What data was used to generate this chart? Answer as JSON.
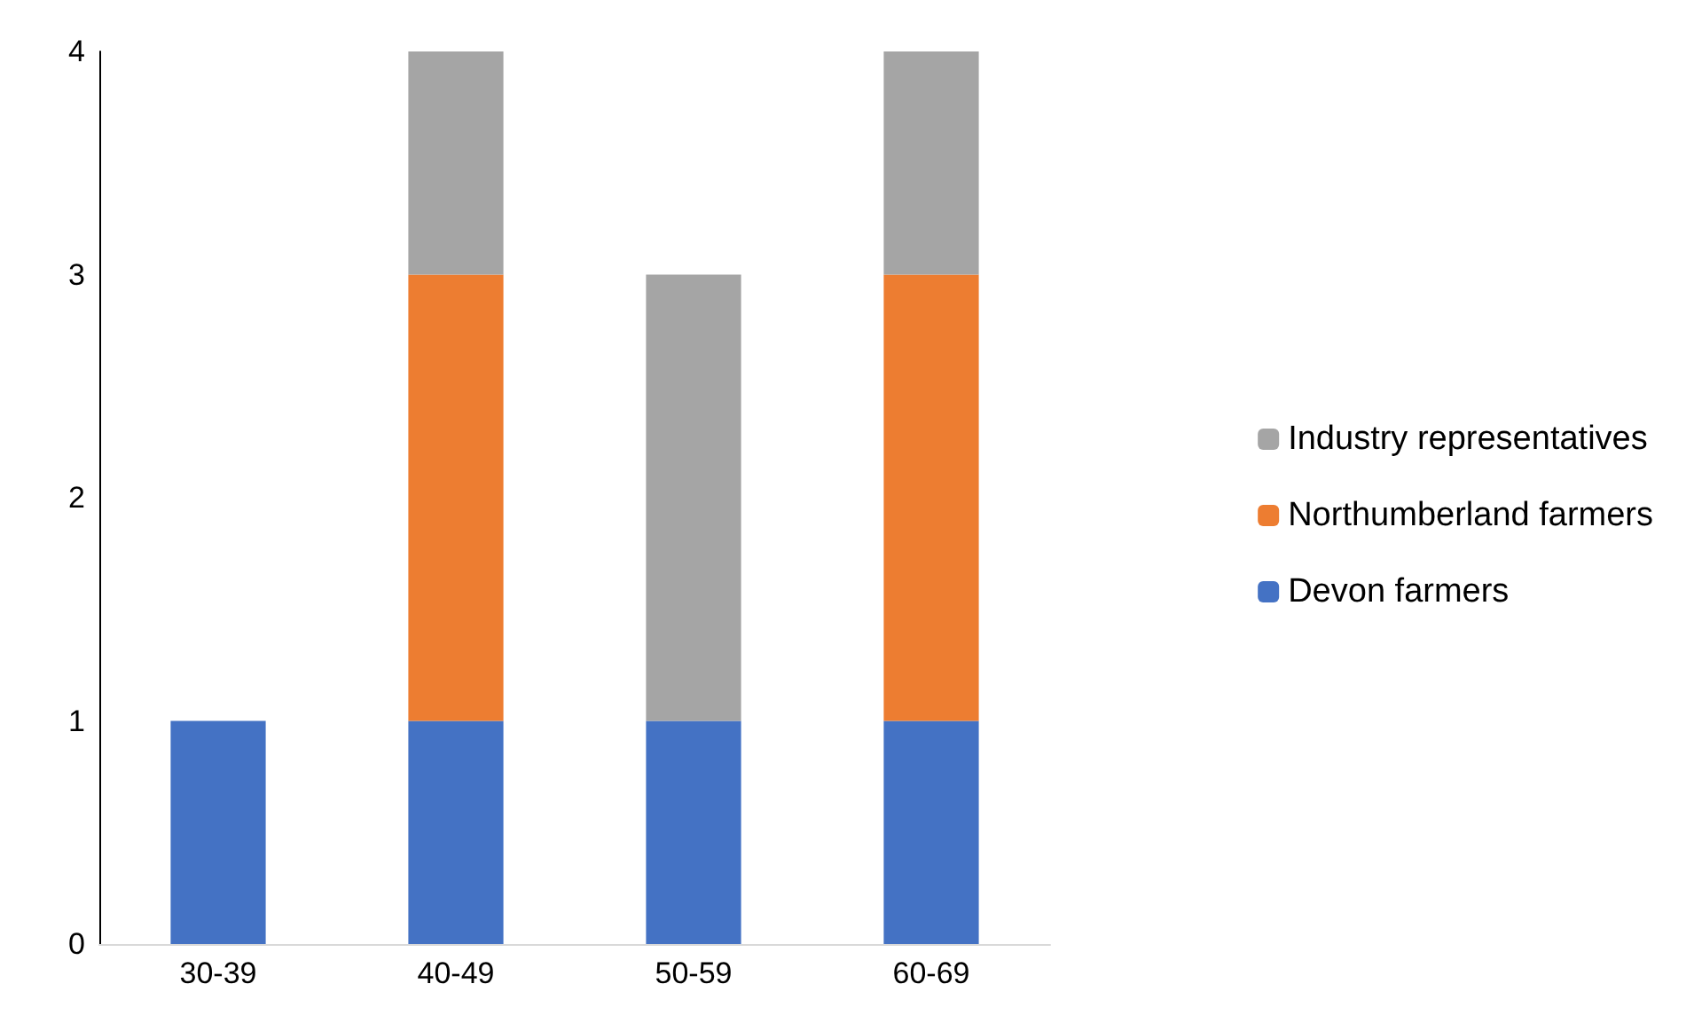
{
  "chart_data": {
    "type": "bar",
    "stacked": true,
    "categories": [
      "30-39",
      "40-49",
      "50-59",
      "60-69"
    ],
    "series": [
      {
        "name": "Devon farmers",
        "color": "#4472c4",
        "values": [
          1,
          1,
          1,
          1
        ]
      },
      {
        "name": "Northumberland farmers",
        "color": "#ed7d31",
        "values": [
          null,
          2,
          null,
          2
        ]
      },
      {
        "name": "Industry representatives",
        "color": "#a5a5a5",
        "values": [
          null,
          1,
          2,
          1
        ]
      }
    ],
    "ylim": [
      0,
      4
    ],
    "yticks": [
      0,
      1,
      2,
      3,
      4
    ],
    "grid": false,
    "legend": "right"
  }
}
